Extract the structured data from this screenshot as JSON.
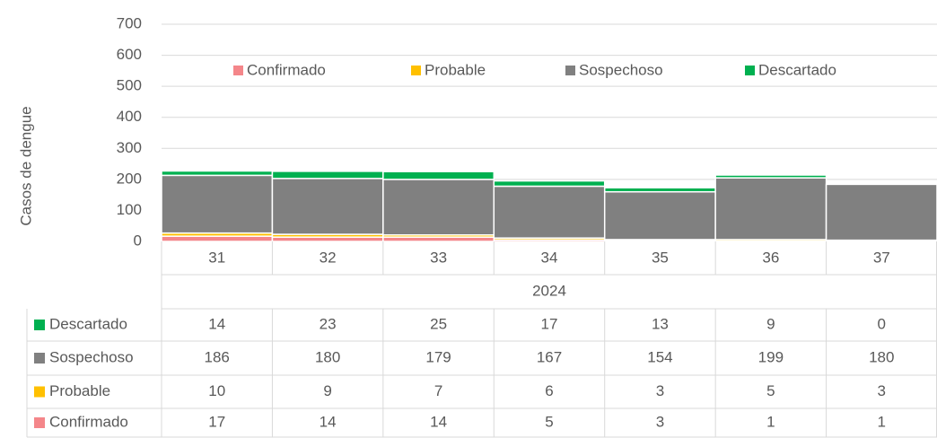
{
  "chart_data": {
    "type": "bar",
    "stacked": true,
    "y_label": "Casos de dengue",
    "group_label": "2024",
    "categories": [
      "31",
      "32",
      "33",
      "34",
      "35",
      "36",
      "37"
    ],
    "series": [
      {
        "name": "Confirmado",
        "color": "#f4868a",
        "values": [
          17,
          14,
          14,
          5,
          3,
          1,
          1
        ]
      },
      {
        "name": "Probable",
        "color": "#ffc000",
        "values": [
          10,
          9,
          7,
          6,
          3,
          5,
          3
        ]
      },
      {
        "name": "Sospechoso",
        "color": "#808080",
        "values": [
          186,
          180,
          179,
          167,
          154,
          199,
          180
        ]
      },
      {
        "name": "Descartado",
        "color": "#00b050",
        "values": [
          14,
          23,
          25,
          17,
          13,
          9,
          0
        ]
      }
    ],
    "ylim": [
      0,
      700
    ],
    "yticks": [
      0,
      100,
      200,
      300,
      400,
      500,
      600,
      700
    ],
    "grid": true,
    "legend": "top",
    "data_table": true
  }
}
